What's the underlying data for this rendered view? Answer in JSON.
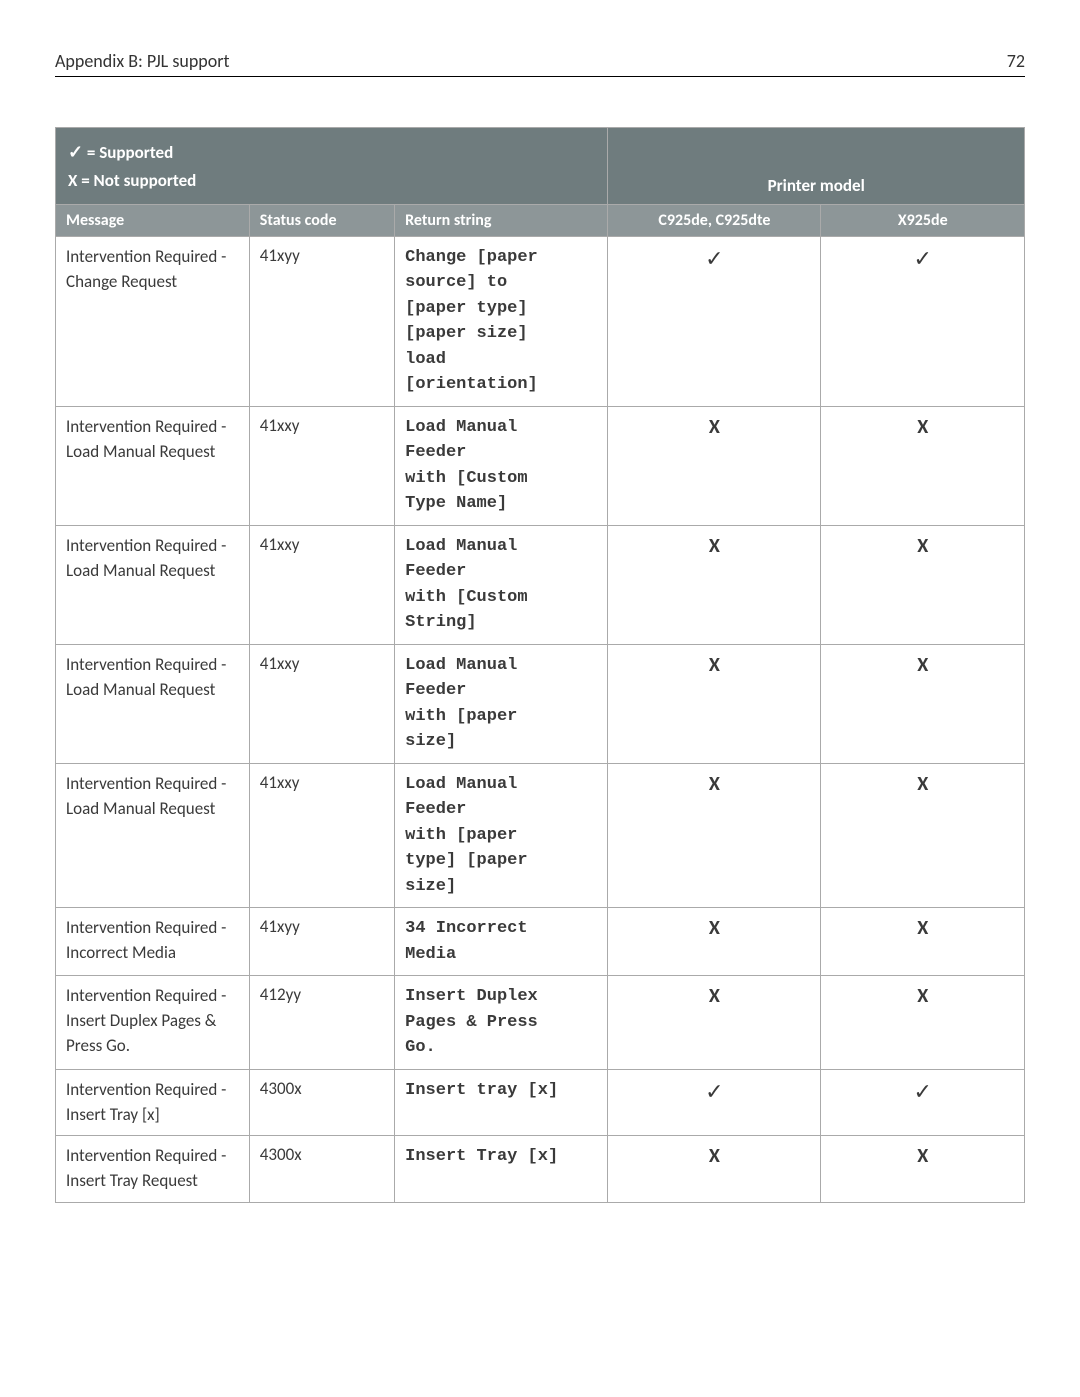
{
  "header": {
    "title": "Appendix B: PJL support",
    "page_number": "72"
  },
  "legend": {
    "supported_symbol": "✓",
    "supported_text": " = Supported",
    "not_supported": "X = Not supported"
  },
  "columns": {
    "message": "Message",
    "status": "Status code",
    "return": "Return string",
    "printer_model": "Printer model",
    "model_a": "C925de, C925dte",
    "model_b": "X925de"
  },
  "col_widths": {
    "message": "20%",
    "status": "15%",
    "return": "22%",
    "model_a": "22%",
    "model_b": "21%"
  },
  "marks": {
    "check": "✓",
    "cross": "X"
  },
  "rows": [
    {
      "message": "Intervention Required - Change Request",
      "status": "41xyy",
      "return": "Change [paper\nsource] to\n[paper type]\n[paper size]\nload\n[orientation]",
      "a": "check",
      "b": "check"
    },
    {
      "message": "Intervention Required - Load Manual Request",
      "status": "41xxy",
      "return": "Load Manual\nFeeder\nwith [Custom\nType Name]",
      "a": "cross",
      "b": "cross"
    },
    {
      "message": "Intervention Required - Load Manual Request",
      "status": "41xxy",
      "return": "Load Manual\nFeeder\nwith [Custom\nString]",
      "a": "cross",
      "b": "cross"
    },
    {
      "message": "Intervention Required - Load Manual Request",
      "status": "41xxy",
      "return": "Load Manual\nFeeder\nwith [paper\nsize]",
      "a": "cross",
      "b": "cross"
    },
    {
      "message": "Intervention Required - Load Manual Request",
      "status": "41xxy",
      "return": "Load Manual\nFeeder\nwith [paper\ntype] [paper\nsize]",
      "a": "cross",
      "b": "cross"
    },
    {
      "message": "Intervention Required - Incorrect Media",
      "status": "41xyy",
      "return": "34 Incorrect\nMedia",
      "a": "cross",
      "b": "cross"
    },
    {
      "message": "Intervention Required - Insert Duplex Pages & Press Go.",
      "status": "412yy",
      "return": "Insert Duplex\nPages & Press\nGo.",
      "a": "cross",
      "b": "cross"
    },
    {
      "message": "Intervention Required - Insert Tray [x]",
      "status": "4300x",
      "return": "Insert tray [x]",
      "a": "check",
      "b": "check"
    },
    {
      "message": "Intervention Required - Insert Tray Request",
      "status": "4300x",
      "return": "Insert Tray [x]",
      "a": "cross",
      "b": "cross"
    }
  ]
}
